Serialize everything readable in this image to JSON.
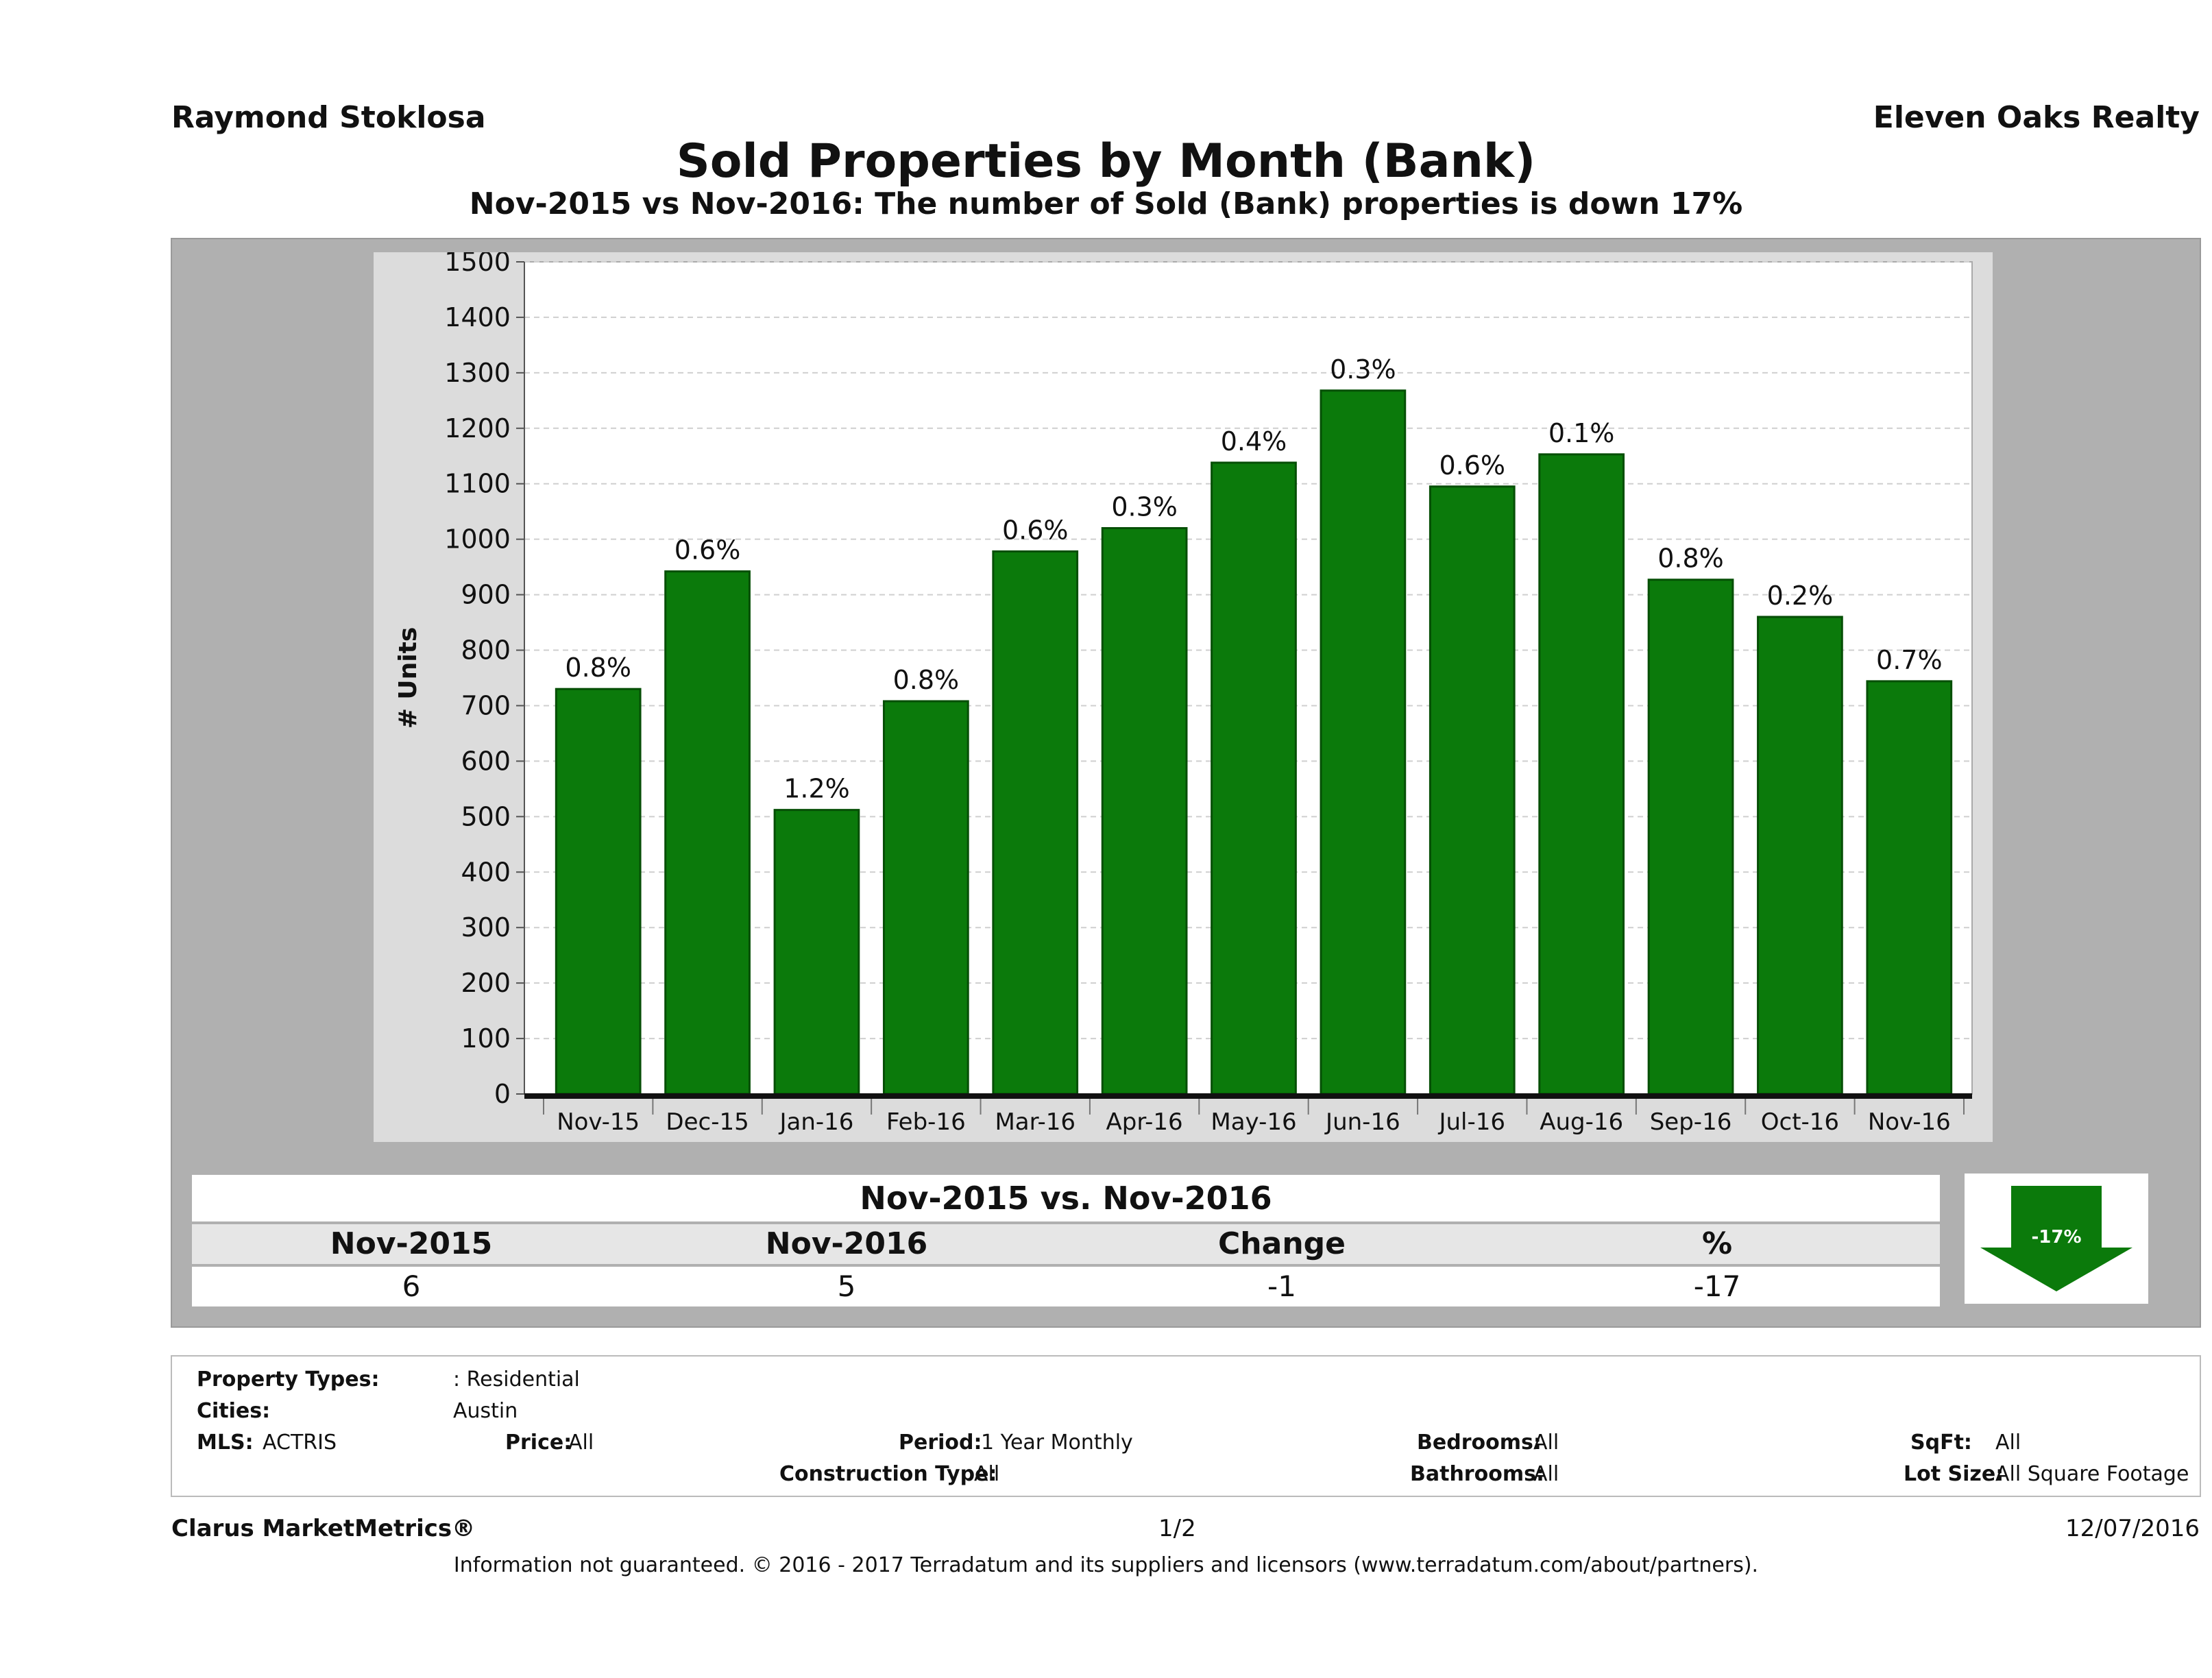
{
  "header": {
    "agent_name": "Raymond Stoklosa",
    "brokerage": "Eleven Oaks Realty",
    "title": "Sold Properties by Month (Bank)",
    "subtitle": "Nov-2015 vs Nov-2016: The number of Sold (Bank)  properties is down 17%"
  },
  "colors": {
    "bar": "#0b7a0b",
    "bar_dark": "#064f06",
    "panel": "#b0b0b0",
    "plot_bg": "#ffffff",
    "arrow": "#0b7a0b"
  },
  "chart_data": {
    "type": "bar",
    "ylabel": "# Units",
    "ylim": [
      0,
      1500
    ],
    "yticks": [
      0,
      100,
      200,
      300,
      400,
      500,
      600,
      700,
      800,
      900,
      1000,
      1100,
      1200,
      1300,
      1400,
      1500
    ],
    "grid": true,
    "categories": [
      "Nov-15",
      "Dec-15",
      "Jan-16",
      "Feb-16",
      "Mar-16",
      "Apr-16",
      "May-16",
      "Jun-16",
      "Jul-16",
      "Aug-16",
      "Sep-16",
      "Oct-16",
      "Nov-16"
    ],
    "values": [
      730,
      942,
      512,
      708,
      978,
      1020,
      1138,
      1268,
      1095,
      1153,
      927,
      860,
      744
    ],
    "data_labels": [
      "0.8%",
      "0.6%",
      "1.2%",
      "0.8%",
      "0.6%",
      "0.3%",
      "0.4%",
      "0.3%",
      "0.6%",
      "0.1%",
      "0.8%",
      "0.2%",
      "0.7%"
    ]
  },
  "summary": {
    "title": "Nov-2015 vs. Nov-2016",
    "headers": [
      "Nov-2015",
      "Nov-2016",
      "Change",
      "%"
    ],
    "values": [
      "6",
      "5",
      "-1",
      "-17"
    ],
    "arrow_label": "-17%",
    "arrow_icon": "down-arrow-icon"
  },
  "filters": {
    "property_types_label": "Property Types:",
    "property_types_value": ": Residential",
    "cities_label": "Cities:",
    "cities_value": "Austin",
    "mls_label": "MLS:",
    "mls_value": "ACTRIS",
    "price_label": "Price:",
    "price_value": "All",
    "period_label": "Period:",
    "period_value": "1 Year Monthly",
    "bedrooms_label": "Bedrooms:",
    "bedrooms_value": "All",
    "sqft_label": "SqFt:",
    "sqft_value": "All",
    "construction_label": "Construction Type:",
    "construction_value": "All",
    "bathrooms_label": "Bathrooms:",
    "bathrooms_value": "All",
    "lot_label": "Lot Size:",
    "lot_value": "All Square Footage"
  },
  "footer": {
    "product": "Clarus MarketMetrics®",
    "page": "1/2",
    "date": "12/07/2016",
    "disclaimer": "Information not guaranteed. © 2016 - 2017 Terradatum and its suppliers and licensors (www.terradatum.com/about/partners)."
  }
}
